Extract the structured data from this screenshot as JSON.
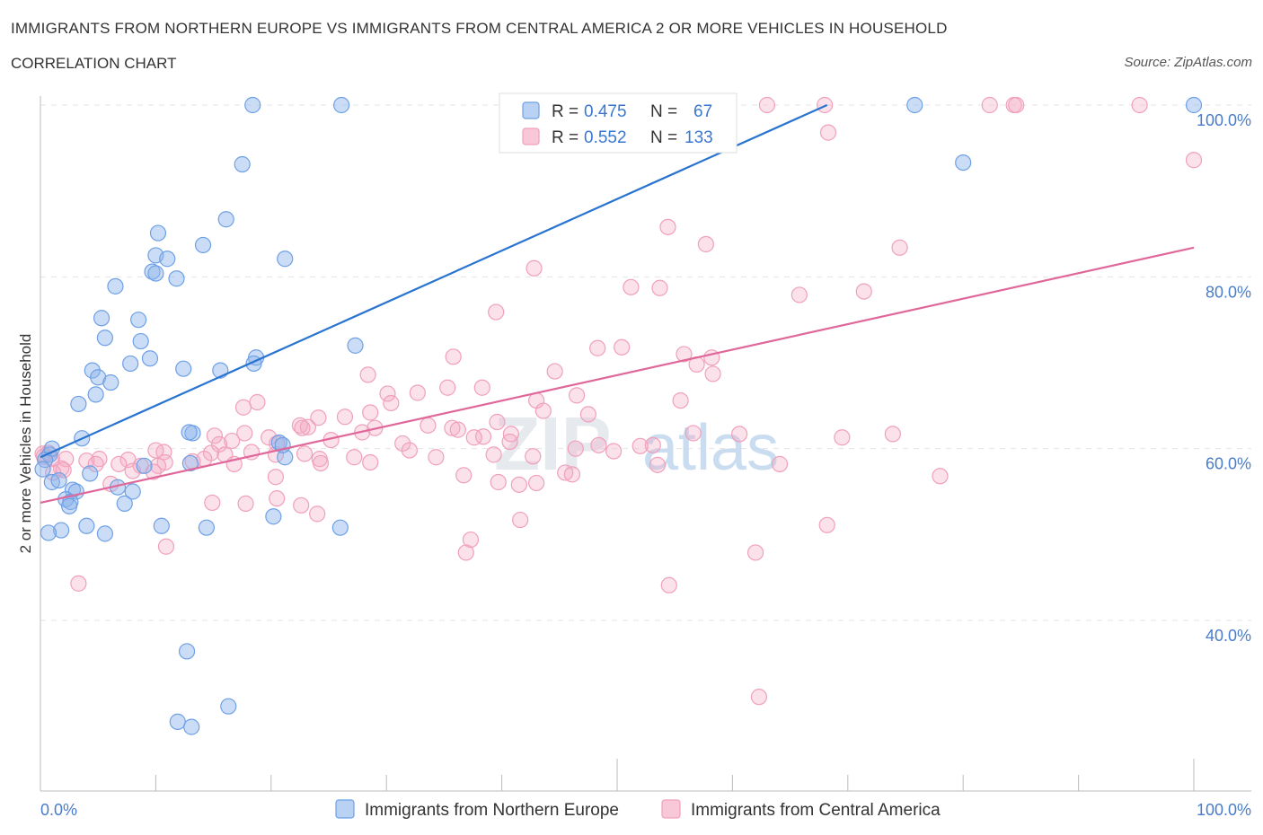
{
  "header": {
    "title": "IMMIGRANTS FROM NORTHERN EUROPE VS IMMIGRANTS FROM CENTRAL AMERICA 2 OR MORE VEHICLES IN HOUSEHOLD",
    "subtitle": "CORRELATION CHART",
    "source": "Source: ZipAtlas.com"
  },
  "watermark": {
    "zip": "ZIP",
    "atlas": "atlas"
  },
  "legend_box": {
    "rows": [
      {
        "r_label": "R = ",
        "r_value": "0.475",
        "n_label": "N = ",
        "n_value": "67"
      },
      {
        "r_label": "R = ",
        "r_value": "0.552",
        "n_label": "N = ",
        "n_value": "133"
      }
    ]
  },
  "chart_data": {
    "type": "scatter",
    "title": "IMMIGRANTS FROM NORTHERN EUROPE VS IMMIGRANTS FROM CENTRAL AMERICA 2 OR MORE VEHICLES IN HOUSEHOLD",
    "subtitle": "CORRELATION CHART",
    "xlabel": "",
    "ylabel": "2 or more Vehicles in Household",
    "xlim": [
      0,
      100
    ],
    "ylim": [
      20,
      104
    ],
    "x_tick_labels": [
      "0.0%",
      "100.0%"
    ],
    "y_tick_values": [
      40,
      60,
      80,
      100
    ],
    "y_tick_labels": [
      "40.0%",
      "60.0%",
      "80.0%",
      "100.0%"
    ],
    "grid": true,
    "legend_position": "bottom",
    "colors": {
      "northern_europe": "#6ea0e6",
      "central_america": "#f0a0bb",
      "ne_line": "#2874d0",
      "ca_line": "#e0679a"
    },
    "series": [
      {
        "name": "Immigrants from Northern Europe",
        "r": 0.475,
        "n": 67,
        "trend": [
          [
            0,
            59.0
          ],
          [
            68.2,
            100
          ]
        ],
        "points": [
          [
            18.4,
            100
          ],
          [
            26.1,
            100
          ],
          [
            75.8,
            100
          ],
          [
            100,
            100
          ],
          [
            17.5,
            93.1
          ],
          [
            80,
            93.3
          ],
          [
            16.1,
            86.7
          ],
          [
            10.2,
            85.1
          ],
          [
            14.1,
            83.7
          ],
          [
            10,
            82.5
          ],
          [
            11,
            82.1
          ],
          [
            21.2,
            82.1
          ],
          [
            9.7,
            80.6
          ],
          [
            10,
            80.4
          ],
          [
            11.8,
            79.8
          ],
          [
            6.5,
            78.9
          ],
          [
            5.3,
            75.2
          ],
          [
            8.5,
            75
          ],
          [
            5.6,
            72.9
          ],
          [
            8.7,
            72.5
          ],
          [
            27.3,
            72
          ],
          [
            18.7,
            70.6
          ],
          [
            9.5,
            70.5
          ],
          [
            7.8,
            69.9
          ],
          [
            18.5,
            69.9
          ],
          [
            12.4,
            69.3
          ],
          [
            15.6,
            69.1
          ],
          [
            4.5,
            69.1
          ],
          [
            5,
            68.3
          ],
          [
            6.1,
            67.7
          ],
          [
            4.8,
            66.3
          ],
          [
            3.3,
            65.2
          ],
          [
            3.6,
            61.2
          ],
          [
            13.2,
            61.8
          ],
          [
            20.7,
            60.7
          ],
          [
            21.2,
            59
          ],
          [
            13,
            58.3
          ],
          [
            0.8,
            59.3
          ],
          [
            0.4,
            58.7
          ],
          [
            0.2,
            57.6
          ],
          [
            9,
            58
          ],
          [
            4.3,
            57.1
          ],
          [
            1,
            56.1
          ],
          [
            1.6,
            56.3
          ],
          [
            6.7,
            55.5
          ],
          [
            8,
            55
          ],
          [
            2.8,
            55.2
          ],
          [
            3.1,
            55
          ],
          [
            2.2,
            54.1
          ],
          [
            2.6,
            53.8
          ],
          [
            7.3,
            53.6
          ],
          [
            2.5,
            53.3
          ],
          [
            20.2,
            52.1
          ],
          [
            4,
            51
          ],
          [
            10.5,
            51
          ],
          [
            14.4,
            50.8
          ],
          [
            26,
            50.8
          ],
          [
            1.8,
            50.5
          ],
          [
            0.7,
            50.2
          ],
          [
            5.6,
            50.1
          ],
          [
            12.7,
            36.4
          ],
          [
            16.3,
            30
          ],
          [
            11.9,
            28.2
          ],
          [
            13.1,
            27.6
          ],
          [
            12.9,
            61.9
          ],
          [
            21,
            60.4
          ],
          [
            1,
            60
          ]
        ]
      },
      {
        "name": "Immigrants from Central America",
        "r": 0.552,
        "n": 133,
        "trend": [
          [
            0,
            53.7
          ],
          [
            100,
            83.4
          ]
        ],
        "points": [
          [
            55.5,
            100
          ],
          [
            63,
            100
          ],
          [
            68,
            100
          ],
          [
            82.3,
            100
          ],
          [
            84.4,
            100
          ],
          [
            84.6,
            100
          ],
          [
            95.3,
            100
          ],
          [
            68.3,
            96.8
          ],
          [
            100,
            93.6
          ],
          [
            54.4,
            85.8
          ],
          [
            57.7,
            83.8
          ],
          [
            74.5,
            83.4
          ],
          [
            42.8,
            81
          ],
          [
            51.2,
            78.8
          ],
          [
            53.7,
            78.7
          ],
          [
            71.4,
            78.3
          ],
          [
            65.8,
            77.9
          ],
          [
            39.5,
            75.9
          ],
          [
            48.3,
            71.7
          ],
          [
            50.4,
            71.8
          ],
          [
            55.8,
            71
          ],
          [
            58.2,
            70.6
          ],
          [
            35.8,
            70.7
          ],
          [
            56.9,
            69.8
          ],
          [
            44.6,
            69
          ],
          [
            58.3,
            68.7
          ],
          [
            28.4,
            68.6
          ],
          [
            32.7,
            66.5
          ],
          [
            38.3,
            67.1
          ],
          [
            30.1,
            66.4
          ],
          [
            35.3,
            67.1
          ],
          [
            46.5,
            66.2
          ],
          [
            43,
            65.6
          ],
          [
            55.5,
            65.6
          ],
          [
            18.8,
            65.4
          ],
          [
            30.4,
            65.3
          ],
          [
            17.6,
            64.8
          ],
          [
            43.6,
            64.4
          ],
          [
            28.6,
            64.2
          ],
          [
            47.5,
            64
          ],
          [
            24.1,
            63.6
          ],
          [
            26.4,
            63.7
          ],
          [
            39.6,
            63.1
          ],
          [
            33.6,
            62.7
          ],
          [
            22.5,
            62.7
          ],
          [
            23.2,
            62.5
          ],
          [
            22.7,
            62.4
          ],
          [
            29,
            62.4
          ],
          [
            35.7,
            62.4
          ],
          [
            36.2,
            62.2
          ],
          [
            27.9,
            61.9
          ],
          [
            17.7,
            61.8
          ],
          [
            15.1,
            61.5
          ],
          [
            40.8,
            61.7
          ],
          [
            73.9,
            61.7
          ],
          [
            56.6,
            61.8
          ],
          [
            19.8,
            61.3
          ],
          [
            69.5,
            61.3
          ],
          [
            60.6,
            61.7
          ],
          [
            38.4,
            61.4
          ],
          [
            37.6,
            61.3
          ],
          [
            25.2,
            61
          ],
          [
            16.6,
            60.9
          ],
          [
            40.7,
            60.8
          ],
          [
            31.4,
            60.6
          ],
          [
            15.5,
            60.5
          ],
          [
            20.5,
            60.6
          ],
          [
            48.4,
            60.4
          ],
          [
            46.4,
            60
          ],
          [
            32,
            59.8
          ],
          [
            53.1,
            60.4
          ],
          [
            10.7,
            59.6
          ],
          [
            10,
            59.8
          ],
          [
            14.8,
            59.5
          ],
          [
            18.3,
            59.6
          ],
          [
            20.4,
            59.3
          ],
          [
            22.9,
            59.4
          ],
          [
            39.3,
            59.3
          ],
          [
            42.7,
            59.1
          ],
          [
            16,
            59.3
          ],
          [
            34.3,
            59
          ],
          [
            27.2,
            59
          ],
          [
            24.2,
            58.8
          ],
          [
            14.2,
            58.8
          ],
          [
            2.2,
            58.8
          ],
          [
            4,
            58.6
          ],
          [
            5.1,
            58.8
          ],
          [
            7.6,
            58.7
          ],
          [
            13.2,
            58.5
          ],
          [
            10.8,
            58.4
          ],
          [
            24.3,
            58.3
          ],
          [
            16.8,
            58.2
          ],
          [
            6.8,
            58.2
          ],
          [
            4.8,
            58.2
          ],
          [
            8.7,
            58
          ],
          [
            10.2,
            58
          ],
          [
            0.7,
            59.5
          ],
          [
            0.2,
            59.4
          ],
          [
            0.3,
            59.1
          ],
          [
            1,
            58.8
          ],
          [
            1.8,
            57.7
          ],
          [
            2,
            57.5
          ],
          [
            1.1,
            57.2
          ],
          [
            8,
            57.4
          ],
          [
            9.8,
            57.3
          ],
          [
            45.5,
            57.2
          ],
          [
            46.1,
            57
          ],
          [
            36.7,
            56.9
          ],
          [
            20.4,
            56.7
          ],
          [
            39.7,
            56.1
          ],
          [
            43,
            56
          ],
          [
            41.5,
            55.8
          ],
          [
            6.1,
            55.9
          ],
          [
            20.5,
            54.2
          ],
          [
            14.9,
            53.7
          ],
          [
            17.8,
            53.6
          ],
          [
            22.6,
            53.4
          ],
          [
            41.6,
            51.7
          ],
          [
            37.3,
            49.4
          ],
          [
            36.9,
            47.9
          ],
          [
            62,
            47.9
          ],
          [
            68.2,
            51.1
          ],
          [
            10.9,
            48.6
          ],
          [
            3.3,
            44.3
          ],
          [
            54.5,
            44.1
          ],
          [
            62.3,
            31.1
          ],
          [
            24,
            52.4
          ],
          [
            28.6,
            58.4
          ],
          [
            53.5,
            58.1
          ],
          [
            64.1,
            58.2
          ],
          [
            78,
            56.8
          ],
          [
            49.7,
            59.7
          ],
          [
            52,
            60.3
          ]
        ]
      }
    ]
  },
  "bottom_legend": [
    {
      "label": "Immigrants from Northern Europe"
    },
    {
      "label": "Immigrants from Central America"
    }
  ]
}
